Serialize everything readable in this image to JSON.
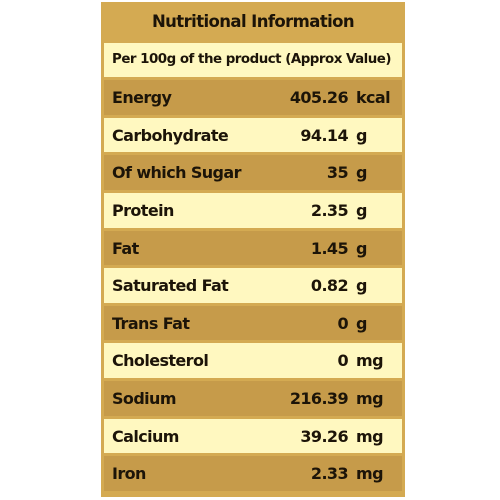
{
  "title": "Nutritional Information",
  "subtitle": "Per 100g of the product (Approx Value)",
  "rows": [
    {
      "name": "Energy",
      "value": "405.26",
      "unit": "kcal"
    },
    {
      "name": "Carbohydrate",
      "value": "94.14",
      "unit": "g"
    },
    {
      "name": "Of which Sugar",
      "value": "35",
      "unit": "g"
    },
    {
      "name": "Protein",
      "value": "2.35",
      "unit": "g"
    },
    {
      "name": "Fat",
      "value": "1.45",
      "unit": "g"
    },
    {
      "name": "Saturated Fat",
      "value": "0.82",
      "unit": "g"
    },
    {
      "name": "Trans Fat",
      "value": "0",
      "unit": "g"
    },
    {
      "name": "Cholesterol",
      "value": "0",
      "unit": "mg"
    },
    {
      "name": "Sodium",
      "value": "216.39",
      "unit": "mg"
    },
    {
      "name": "Calcium",
      "value": "39.26",
      "unit": "mg"
    },
    {
      "name": "Iron",
      "value": "2.33",
      "unit": "mg"
    }
  ],
  "colors": {
    "frame": "#d4aa52",
    "dark_row": "#c69b4a",
    "light_row": "#fff8c0",
    "text": "#1c1408"
  }
}
